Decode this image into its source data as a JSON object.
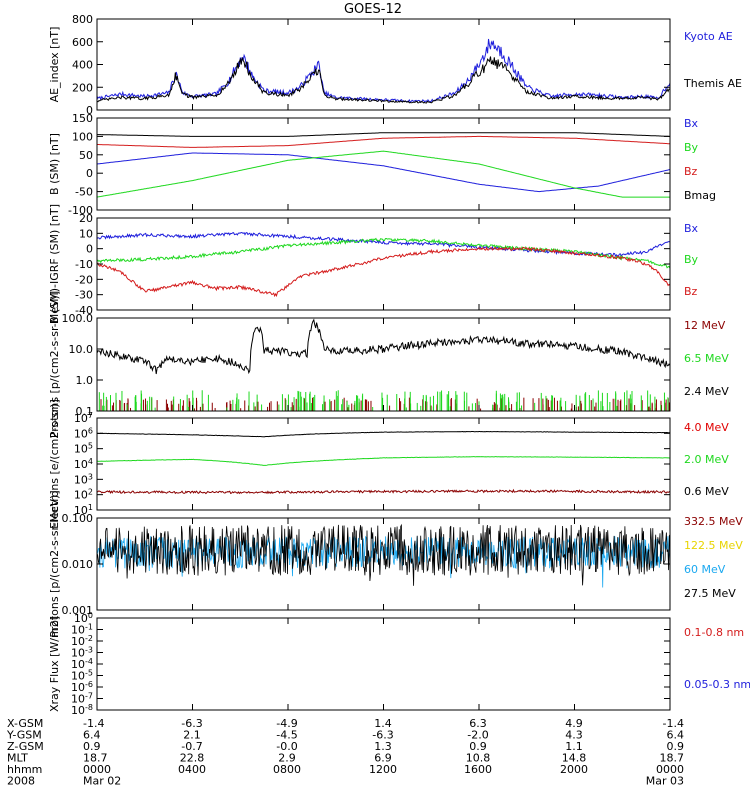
{
  "title": "GOES-12",
  "colors": {
    "black": "#000000",
    "blue": "#1f1fdc",
    "red": "#d41c1c",
    "green": "#1ed81e",
    "darkred": "#8b0000",
    "orange": "#e00000",
    "yellow": "#e8d400",
    "cyan": "#1aa8f0"
  },
  "ephemeris": {
    "rows": [
      {
        "label": "X-GSM",
        "values": [
          "-1.4",
          "-6.3",
          "-4.9",
          "1.4",
          "6.3",
          "4.9",
          "-1.4"
        ]
      },
      {
        "label": "Y-GSM",
        "values": [
          "6.4",
          "2.1",
          "-4.5",
          "-6.3",
          "-2.0",
          "4.3",
          "6.4"
        ]
      },
      {
        "label": "Z-GSM",
        "values": [
          "0.9",
          "-0.7",
          "-0.0",
          "1.3",
          "0.9",
          "1.1",
          "0.9"
        ]
      },
      {
        "label": "MLT",
        "values": [
          "18.7",
          "22.8",
          "2.9",
          "6.9",
          "10.8",
          "14.8",
          "18.7"
        ]
      },
      {
        "label": "hhmm",
        "values": [
          "0000",
          "0400",
          "0800",
          "1200",
          "1600",
          "2000",
          "0000"
        ]
      },
      {
        "label": "2008",
        "values": [
          "Mar 02",
          "",
          "",
          "",
          "",
          "",
          "Mar 03"
        ]
      }
    ]
  },
  "chart_data": [
    {
      "type": "line",
      "ylabel": "AE_index [nT]",
      "ylim": [
        0,
        800
      ],
      "yticks": [
        "0",
        "200",
        "400",
        "600",
        "800"
      ],
      "series": [
        {
          "name": "Kyoto AE",
          "color": "blue",
          "x": [
            0,
            1,
            2,
            3,
            3.3,
            3.6,
            4,
            5,
            5.5,
            6.1,
            6.5,
            7,
            8,
            8.5,
            9.3,
            9.5,
            10,
            11,
            12,
            13,
            14,
            15,
            15.5,
            16,
            16.5,
            17,
            18,
            19,
            20,
            21,
            22,
            23,
            23.5,
            24
          ],
          "y": [
            100,
            140,
            120,
            150,
            320,
            150,
            120,
            140,
            250,
            480,
            300,
            170,
            150,
            200,
            400,
            150,
            110,
            100,
            90,
            80,
            80,
            150,
            250,
            400,
            600,
            500,
            200,
            120,
            140,
            130,
            110,
            120,
            100,
            250
          ]
        },
        {
          "name": "Themis AE",
          "color": "black",
          "x": [
            0,
            1,
            2,
            3,
            3.3,
            3.6,
            4,
            5,
            5.5,
            6.1,
            6.5,
            7,
            8,
            8.5,
            9.3,
            9.5,
            10,
            11,
            12,
            13,
            14,
            15,
            15.5,
            16,
            16.5,
            17,
            18,
            19,
            20,
            21,
            22,
            23,
            23.5,
            24
          ],
          "y": [
            80,
            110,
            100,
            130,
            310,
            140,
            110,
            130,
            230,
            460,
            280,
            150,
            130,
            180,
            360,
            130,
            100,
            90,
            80,
            70,
            70,
            130,
            220,
            330,
            430,
            380,
            160,
            100,
            120,
            110,
            100,
            110,
            90,
            200
          ]
        }
      ]
    },
    {
      "type": "line",
      "ylabel": "B (SM) [nT]",
      "ylim": [
        -100,
        150
      ],
      "yticks": [
        "-100",
        "-50",
        "0",
        "50",
        "100",
        "150"
      ],
      "series": [
        {
          "name": "Bx",
          "color": "blue",
          "x": [
            0,
            4,
            8,
            12,
            16,
            18.5,
            21,
            24
          ],
          "y": [
            25,
            55,
            50,
            20,
            -30,
            -50,
            -35,
            10
          ]
        },
        {
          "name": "By",
          "color": "green",
          "x": [
            0,
            4,
            8,
            12,
            16,
            20,
            22,
            24
          ],
          "y": [
            -65,
            -20,
            35,
            60,
            25,
            -40,
            -65,
            -65
          ]
        },
        {
          "name": "Bz",
          "color": "red",
          "x": [
            0,
            4,
            8,
            12,
            16,
            20,
            24
          ],
          "y": [
            78,
            70,
            75,
            95,
            100,
            95,
            80
          ]
        },
        {
          "name": "Bmag",
          "color": "black",
          "x": [
            0,
            4,
            8,
            12,
            16,
            20,
            24
          ],
          "y": [
            105,
            100,
            100,
            110,
            110,
            110,
            100
          ]
        }
      ]
    },
    {
      "type": "line",
      "ylabel": "B (SM)-IGRF (SM) [nT]",
      "ylim": [
        -40,
        20
      ],
      "yticks": [
        "-40",
        "-30",
        "-20",
        "-10",
        "0",
        "10",
        "20"
      ],
      "series": [
        {
          "name": "Bx",
          "color": "blue",
          "x": [
            0,
            2,
            4,
            6,
            8,
            10,
            12,
            14,
            16,
            18,
            20,
            22,
            23,
            24
          ],
          "y": [
            7,
            9,
            8,
            10,
            8,
            6,
            4,
            3,
            1,
            -1,
            -3,
            -4,
            -2,
            5
          ]
        },
        {
          "name": "By",
          "color": "green",
          "x": [
            0,
            2,
            4,
            6,
            8,
            10,
            12,
            14,
            16,
            18,
            20,
            22,
            23,
            24
          ],
          "y": [
            -8,
            -7,
            -5,
            -2,
            2,
            4,
            6,
            5,
            2,
            0,
            -2,
            -6,
            -8,
            -12
          ]
        },
        {
          "name": "Bz",
          "color": "red",
          "x": [
            0,
            1,
            2,
            3,
            4,
            5,
            6,
            7.5,
            8.5,
            9.5,
            11,
            12,
            14,
            16,
            18,
            20,
            22,
            23,
            23.5,
            24
          ],
          "y": [
            -10,
            -15,
            -28,
            -25,
            -22,
            -26,
            -25,
            -30,
            -18,
            -15,
            -10,
            -6,
            -2,
            0,
            0,
            -3,
            -6,
            -10,
            -15,
            -25
          ]
        }
      ]
    },
    {
      "type": "line",
      "ylabel": "Protons [p/(cm2-s-sr-MeV)]",
      "yscale": "log",
      "ylim": [
        0.1,
        100
      ],
      "yticks": [
        "0.1",
        "1.0",
        "10.0",
        "100.0"
      ],
      "series": [
        {
          "name": "12 MeV",
          "color": "darkred",
          "x": [
            0,
            24
          ],
          "y": [
            0.1,
            0.1
          ]
        },
        {
          "name": "6.5 MeV",
          "color": "green",
          "x": [
            0,
            24
          ],
          "y": [
            0.12,
            0.12
          ]
        },
        {
          "name": "2.4 MeV",
          "color": "black",
          "x": [
            0,
            1,
            2,
            2.5,
            3,
            4,
            5,
            6,
            6.4,
            6.7,
            7,
            8,
            8.8,
            9.1,
            9.5,
            10,
            12,
            14,
            15,
            16,
            17,
            18,
            20,
            22,
            23,
            24
          ],
          "y": [
            8,
            6,
            4,
            2,
            5,
            4,
            5,
            3,
            2,
            60,
            9,
            8,
            7,
            70,
            10,
            8,
            10,
            15,
            18,
            20,
            18,
            15,
            12,
            8,
            5,
            3
          ]
        }
      ]
    },
    {
      "type": "line",
      "ylabel": "Electrons [e/(cm2-s-sr)]",
      "yscale": "log",
      "ylim": [
        10,
        10000000
      ],
      "yticks": [
        "10^1",
        "10^2",
        "10^3",
        "10^4",
        "10^5",
        "10^6",
        "10^7"
      ],
      "series": [
        {
          "name": "4.0 MeV",
          "color": "orange",
          "x": [
            0,
            24
          ],
          "y": [
            10,
            10
          ]
        },
        {
          "name": "2.0 MeV",
          "color": "green",
          "x": [
            0,
            4,
            7,
            9,
            12,
            16,
            20,
            24
          ],
          "y": [
            15000,
            20000,
            8000,
            15000,
            25000,
            30000,
            28000,
            25000
          ]
        },
        {
          "name": "0.6 MeV",
          "color": "black",
          "x": [
            0,
            4,
            7,
            9,
            12,
            16,
            20,
            24
          ],
          "y": [
            1000000,
            800000,
            600000,
            900000,
            1200000,
            1300000,
            1200000,
            1100000
          ]
        },
        {
          "name": "",
          "color": "darkred",
          "x": [
            0,
            6,
            12,
            18,
            24
          ],
          "y": [
            150,
            140,
            160,
            170,
            150
          ]
        }
      ]
    },
    {
      "type": "line",
      "ylabel": "Protons [p/(cm2-s-sr-MeV)]",
      "yscale": "log",
      "ylim": [
        0.001,
        0.1
      ],
      "yticks": [
        "0.001",
        "0.010",
        "0.100"
      ],
      "series": [
        {
          "name": "332.5 MeV",
          "color": "darkred",
          "x": [
            0,
            24
          ],
          "y": [
            0.001,
            0.001
          ]
        },
        {
          "name": "122.5 MeV",
          "color": "yellow",
          "x": [
            0,
            24
          ],
          "y": [
            0.001,
            0.001
          ]
        },
        {
          "name": "60 MeV",
          "color": "cyan",
          "x": [
            0,
            24
          ],
          "y": [
            0.018,
            0.018
          ]
        },
        {
          "name": "27.5 MeV",
          "color": "black",
          "x": [
            0,
            24
          ],
          "y": [
            0.02,
            0.02
          ]
        }
      ]
    },
    {
      "type": "line",
      "ylabel": "Xray Flux [W/m2]",
      "yscale": "log",
      "ylim": [
        1e-08,
        1
      ],
      "yticks": [
        "10^-8",
        "10^-7",
        "10^-6",
        "10^-5",
        "10^-4",
        "10^-3",
        "10^-2",
        "10^-1",
        "10^0"
      ],
      "series": [
        {
          "name": "0.1-0.8 nm",
          "color": "red",
          "x": [],
          "y": []
        },
        {
          "name": "0.05-0.3 nm",
          "color": "blue",
          "x": [],
          "y": []
        }
      ]
    }
  ]
}
